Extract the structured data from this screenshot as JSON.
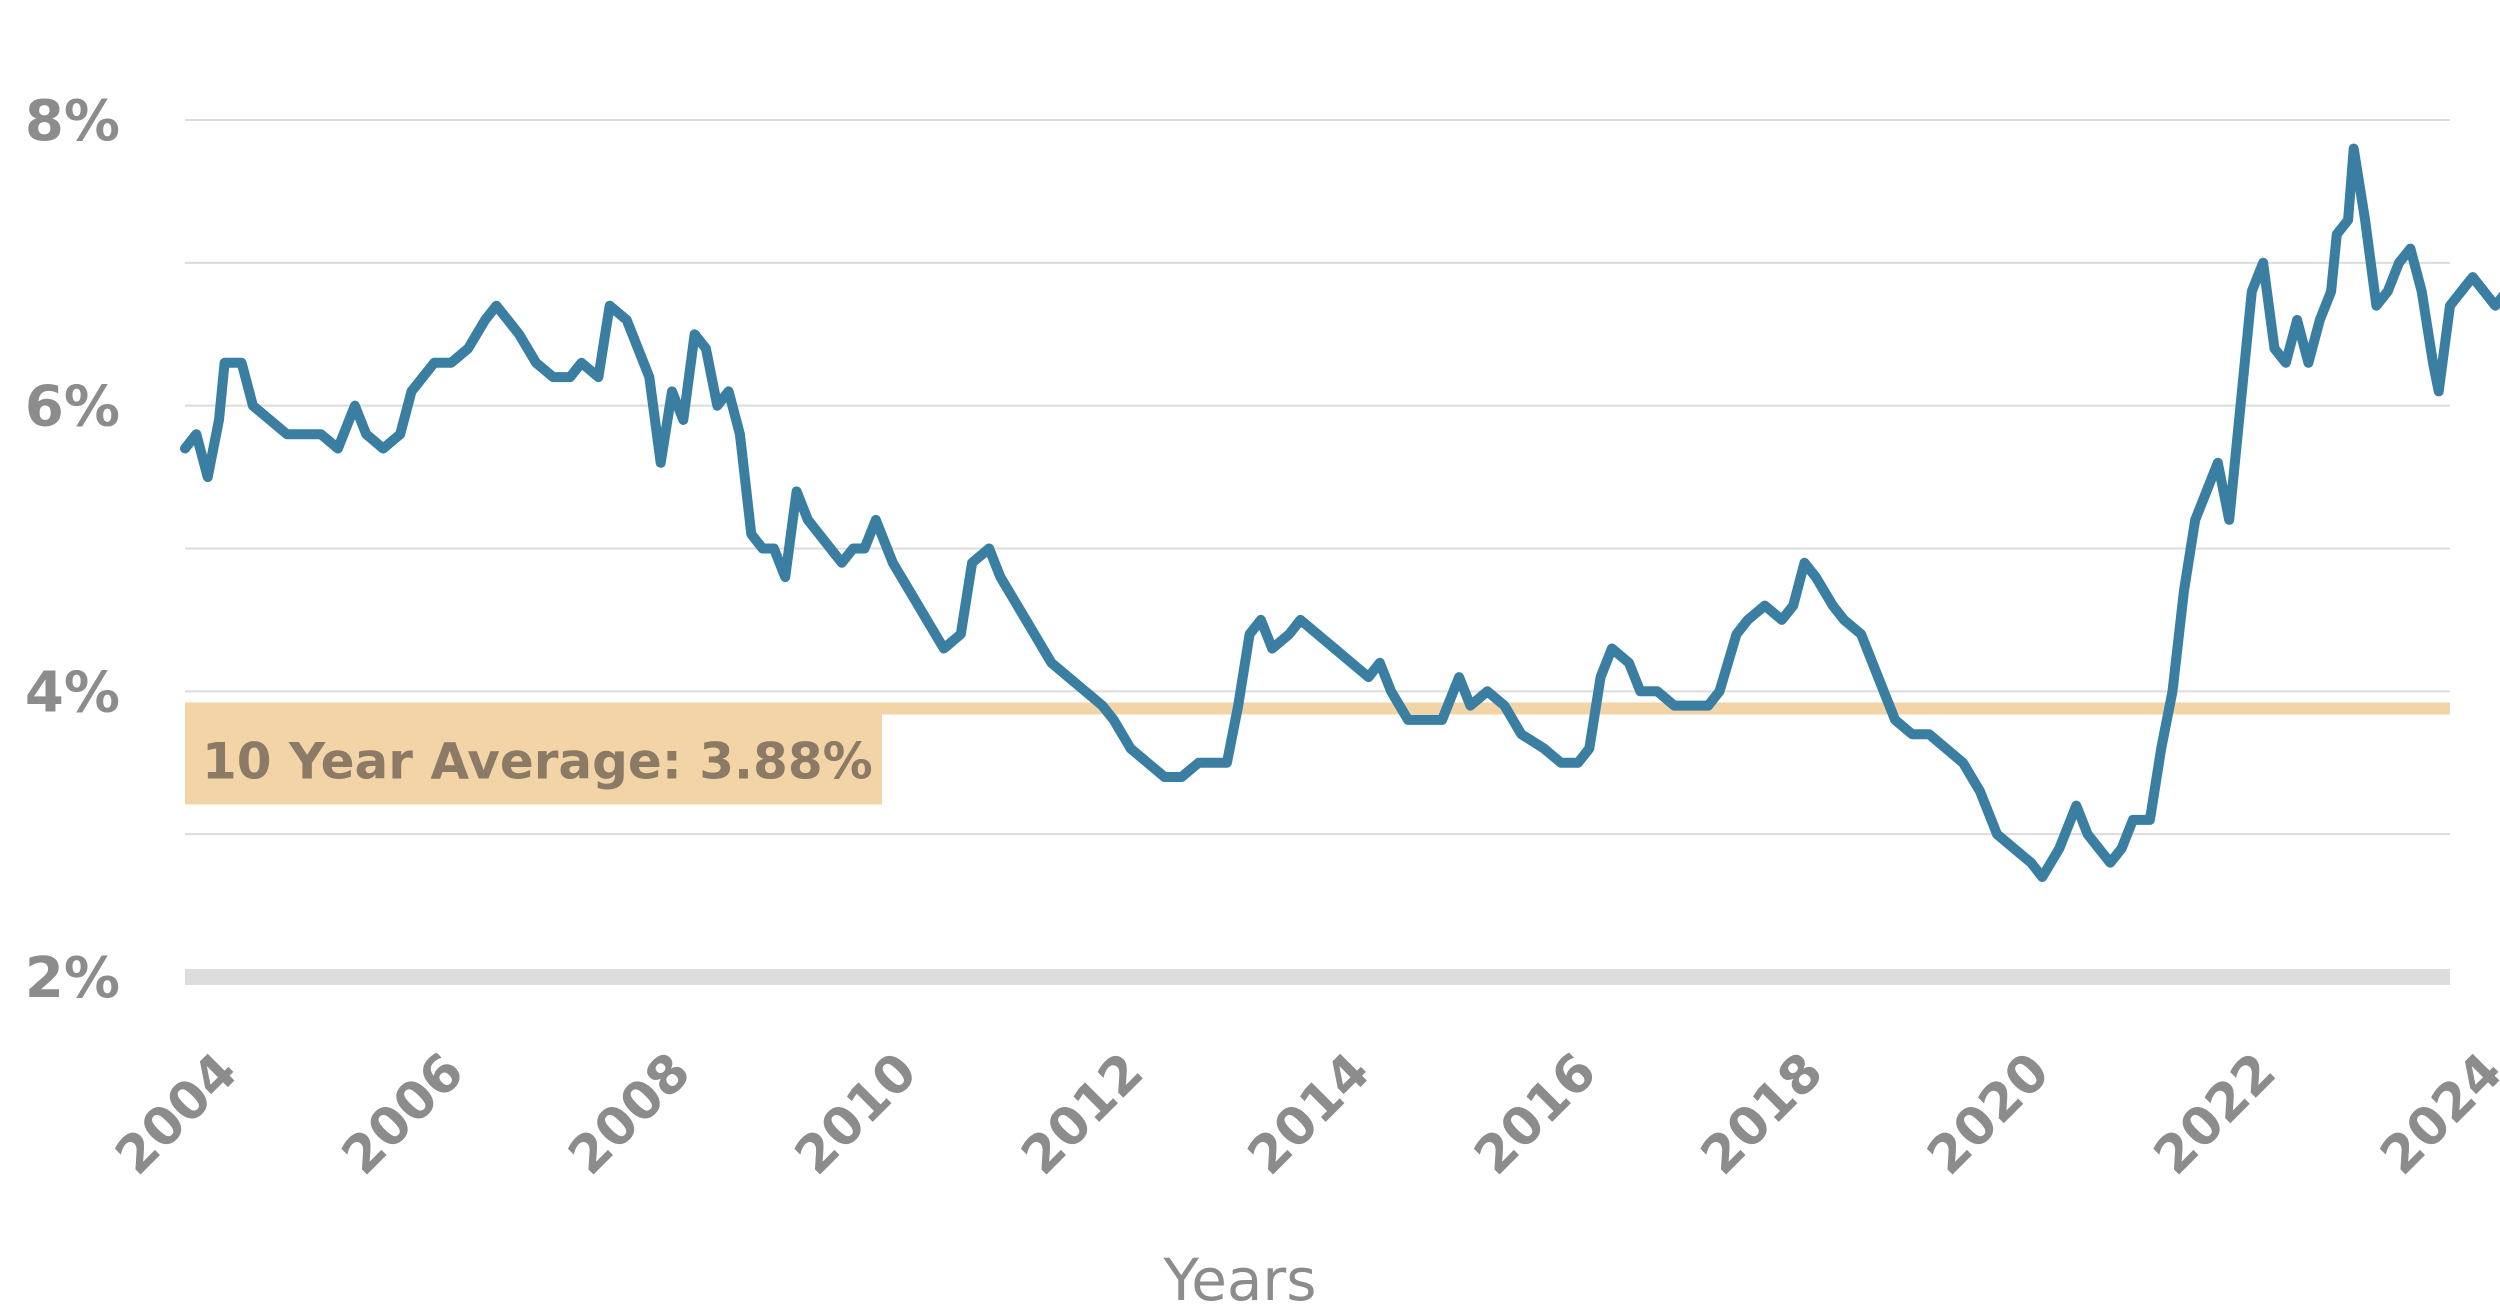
{
  "chart_data": {
    "type": "line",
    "xlabel": "Years",
    "ylabel": "",
    "xlim": [
      2004,
      2024
    ],
    "ylim": [
      2,
      8
    ],
    "x_ticks": [
      "2004",
      "2006",
      "2008",
      "2010",
      "2012",
      "2014",
      "2016",
      "2018",
      "2020",
      "2022",
      "2024"
    ],
    "y_ticks": [
      "2%",
      "4%",
      "6%",
      "8%"
    ],
    "grid": true,
    "series": [
      {
        "color": "#3a7fa1",
        "points": [
          [
            2004.0,
            5.7
          ],
          [
            2004.1,
            5.8
          ],
          [
            2004.2,
            5.5
          ],
          [
            2004.3,
            5.9
          ],
          [
            2004.35,
            6.3
          ],
          [
            2004.5,
            6.3
          ],
          [
            2004.6,
            6.0
          ],
          [
            2004.75,
            5.9
          ],
          [
            2004.9,
            5.8
          ],
          [
            2005.0,
            5.8
          ],
          [
            2005.2,
            5.8
          ],
          [
            2005.35,
            5.7
          ],
          [
            2005.5,
            6.0
          ],
          [
            2005.6,
            5.8
          ],
          [
            2005.75,
            5.7
          ],
          [
            2005.9,
            5.8
          ],
          [
            2006.0,
            6.1
          ],
          [
            2006.2,
            6.3
          ],
          [
            2006.35,
            6.3
          ],
          [
            2006.5,
            6.4
          ],
          [
            2006.65,
            6.6
          ],
          [
            2006.75,
            6.7
          ],
          [
            2006.85,
            6.6
          ],
          [
            2006.95,
            6.5
          ],
          [
            2007.1,
            6.3
          ],
          [
            2007.25,
            6.2
          ],
          [
            2007.4,
            6.2
          ],
          [
            2007.5,
            6.3
          ],
          [
            2007.65,
            6.2
          ],
          [
            2007.75,
            6.7
          ],
          [
            2007.9,
            6.6
          ],
          [
            2008.0,
            6.4
          ],
          [
            2008.1,
            6.2
          ],
          [
            2008.2,
            5.6
          ],
          [
            2008.3,
            6.1
          ],
          [
            2008.4,
            5.9
          ],
          [
            2008.5,
            6.5
          ],
          [
            2008.6,
            6.4
          ],
          [
            2008.7,
            6.0
          ],
          [
            2008.8,
            6.1
          ],
          [
            2008.9,
            5.8
          ],
          [
            2009.0,
            5.1
          ],
          [
            2009.1,
            5.0
          ],
          [
            2009.2,
            5.0
          ],
          [
            2009.3,
            4.8
          ],
          [
            2009.4,
            5.4
          ],
          [
            2009.5,
            5.2
          ],
          [
            2009.6,
            5.1
          ],
          [
            2009.7,
            5.0
          ],
          [
            2009.8,
            4.9
          ],
          [
            2009.9,
            5.0
          ],
          [
            2010.0,
            5.0
          ],
          [
            2010.1,
            5.2
          ],
          [
            2010.25,
            4.9
          ],
          [
            2010.4,
            4.7
          ],
          [
            2010.55,
            4.5
          ],
          [
            2010.7,
            4.3
          ],
          [
            2010.85,
            4.4
          ],
          [
            2010.95,
            4.9
          ],
          [
            2011.1,
            5.0
          ],
          [
            2011.2,
            4.8
          ],
          [
            2011.35,
            4.6
          ],
          [
            2011.5,
            4.4
          ],
          [
            2011.65,
            4.2
          ],
          [
            2011.8,
            4.1
          ],
          [
            2011.95,
            4.0
          ],
          [
            2012.1,
            3.9
          ],
          [
            2012.2,
            3.8
          ],
          [
            2012.35,
            3.6
          ],
          [
            2012.5,
            3.5
          ],
          [
            2012.65,
            3.4
          ],
          [
            2012.8,
            3.4
          ],
          [
            2012.95,
            3.5
          ],
          [
            2013.1,
            3.5
          ],
          [
            2013.2,
            3.5
          ],
          [
            2013.3,
            3.9
          ],
          [
            2013.4,
            4.4
          ],
          [
            2013.5,
            4.5
          ],
          [
            2013.6,
            4.3
          ],
          [
            2013.75,
            4.4
          ],
          [
            2013.85,
            4.5
          ],
          [
            2014.0,
            4.4
          ],
          [
            2014.15,
            4.3
          ],
          [
            2014.3,
            4.2
          ],
          [
            2014.45,
            4.1
          ],
          [
            2014.55,
            4.2
          ],
          [
            2014.65,
            4.0
          ],
          [
            2014.8,
            3.8
          ],
          [
            2014.95,
            3.8
          ],
          [
            2015.1,
            3.8
          ],
          [
            2015.25,
            4.1
          ],
          [
            2015.35,
            3.9
          ],
          [
            2015.5,
            4.0
          ],
          [
            2015.65,
            3.9
          ],
          [
            2015.8,
            3.7
          ],
          [
            2016.0,
            3.6
          ],
          [
            2016.15,
            3.5
          ],
          [
            2016.3,
            3.5
          ],
          [
            2016.4,
            3.6
          ],
          [
            2016.5,
            4.1
          ],
          [
            2016.6,
            4.3
          ],
          [
            2016.75,
            4.2
          ],
          [
            2016.85,
            4.0
          ],
          [
            2017.0,
            4.0
          ],
          [
            2017.15,
            3.9
          ],
          [
            2017.3,
            3.9
          ],
          [
            2017.45,
            3.9
          ],
          [
            2017.55,
            4.0
          ],
          [
            2017.7,
            4.4
          ],
          [
            2017.8,
            4.5
          ],
          [
            2017.95,
            4.6
          ],
          [
            2018.1,
            4.5
          ],
          [
            2018.2,
            4.6
          ],
          [
            2018.3,
            4.9
          ],
          [
            2018.4,
            4.8
          ],
          [
            2018.55,
            4.6
          ],
          [
            2018.65,
            4.5
          ],
          [
            2018.8,
            4.4
          ],
          [
            2018.95,
            4.1
          ],
          [
            2019.1,
            3.8
          ],
          [
            2019.25,
            3.7
          ],
          [
            2019.4,
            3.7
          ],
          [
            2019.55,
            3.6
          ],
          [
            2019.7,
            3.5
          ],
          [
            2019.85,
            3.3
          ],
          [
            2020.0,
            3.0
          ],
          [
            2020.15,
            2.9
          ],
          [
            2020.3,
            2.8
          ],
          [
            2020.4,
            2.7
          ],
          [
            2020.55,
            2.9
          ],
          [
            2020.7,
            3.2
          ],
          [
            2020.8,
            3.0
          ],
          [
            2020.9,
            2.9
          ],
          [
            2021.0,
            2.8
          ],
          [
            2021.1,
            2.9
          ],
          [
            2021.2,
            3.1
          ],
          [
            2021.35,
            3.1
          ],
          [
            2021.45,
            3.6
          ],
          [
            2021.55,
            4.0
          ],
          [
            2021.65,
            4.7
          ],
          [
            2021.75,
            5.2
          ],
          [
            2021.85,
            5.4
          ],
          [
            2021.95,
            5.6
          ],
          [
            2022.05,
            5.2
          ],
          [
            2022.15,
            6.0
          ],
          [
            2022.25,
            6.8
          ],
          [
            2022.35,
            7.0
          ],
          [
            2022.45,
            6.4
          ],
          [
            2022.55,
            6.3
          ],
          [
            2022.65,
            6.6
          ],
          [
            2022.75,
            6.3
          ],
          [
            2022.85,
            6.6
          ],
          [
            2022.95,
            6.8
          ],
          [
            2023.0,
            7.2
          ],
          [
            2023.1,
            7.3
          ],
          [
            2023.15,
            7.8
          ],
          [
            2023.25,
            7.3
          ],
          [
            2023.35,
            6.7
          ],
          [
            2023.45,
            6.8
          ],
          [
            2023.55,
            7.0
          ],
          [
            2023.65,
            7.1
          ],
          [
            2023.75,
            6.8
          ],
          [
            2023.85,
            6.3
          ],
          [
            2023.9,
            6.1
          ],
          [
            2024.0,
            6.7
          ],
          [
            2024.1,
            6.8
          ],
          [
            2024.2,
            6.9
          ],
          [
            2024.3,
            6.8
          ],
          [
            2024.4,
            6.7
          ],
          [
            2024.5,
            6.8
          ],
          [
            2024.6,
            6.7
          ],
          [
            2024.7,
            6.7
          ]
        ]
      }
    ],
    "reference_line": {
      "value": 3.88,
      "color": "#f3d4a7",
      "label": "10 Year Average:  3.88%"
    },
    "baseline_color": "#dddddd",
    "grid_color": "#dcdcdc",
    "tick_color": "#8c8c8c"
  }
}
